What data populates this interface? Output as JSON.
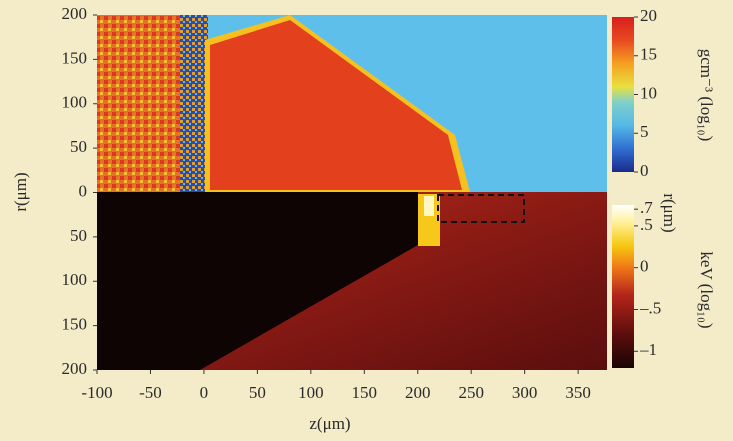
{
  "chart_data": {
    "type": "heatmap",
    "xlabel": "z(μm)",
    "ylabel": "r(μm)",
    "xlim": [
      -100,
      377
    ],
    "xticks": [
      -100,
      -50,
      0,
      50,
      100,
      150,
      200,
      250,
      300,
      350
    ],
    "ylim": [
      -200,
      200
    ],
    "yticks": [
      {
        "value": -200,
        "label": "200"
      },
      {
        "value": -150,
        "label": "150"
      },
      {
        "value": -100,
        "label": "100"
      },
      {
        "value": -50,
        "label": "50"
      },
      0,
      50,
      100,
      150,
      200
    ],
    "colorbars": [
      {
        "label": "gcm⁻³ (log₁₀)",
        "clim": [
          0,
          20
        ],
        "ticks": [
          0,
          5,
          10,
          15,
          20
        ]
      },
      {
        "label": "keV (log₁₀)",
        "clim": [
          -1.2,
          0.75
        ],
        "ticks": [
          {
            "value": 0.7,
            "label": ".7"
          },
          {
            "value": 0.5,
            "label": ".5"
          },
          0,
          {
            "value": -0.5,
            "label": "–.5"
          },
          {
            "value": -1,
            "label": "–1"
          }
        ]
      }
    ]
  }
}
